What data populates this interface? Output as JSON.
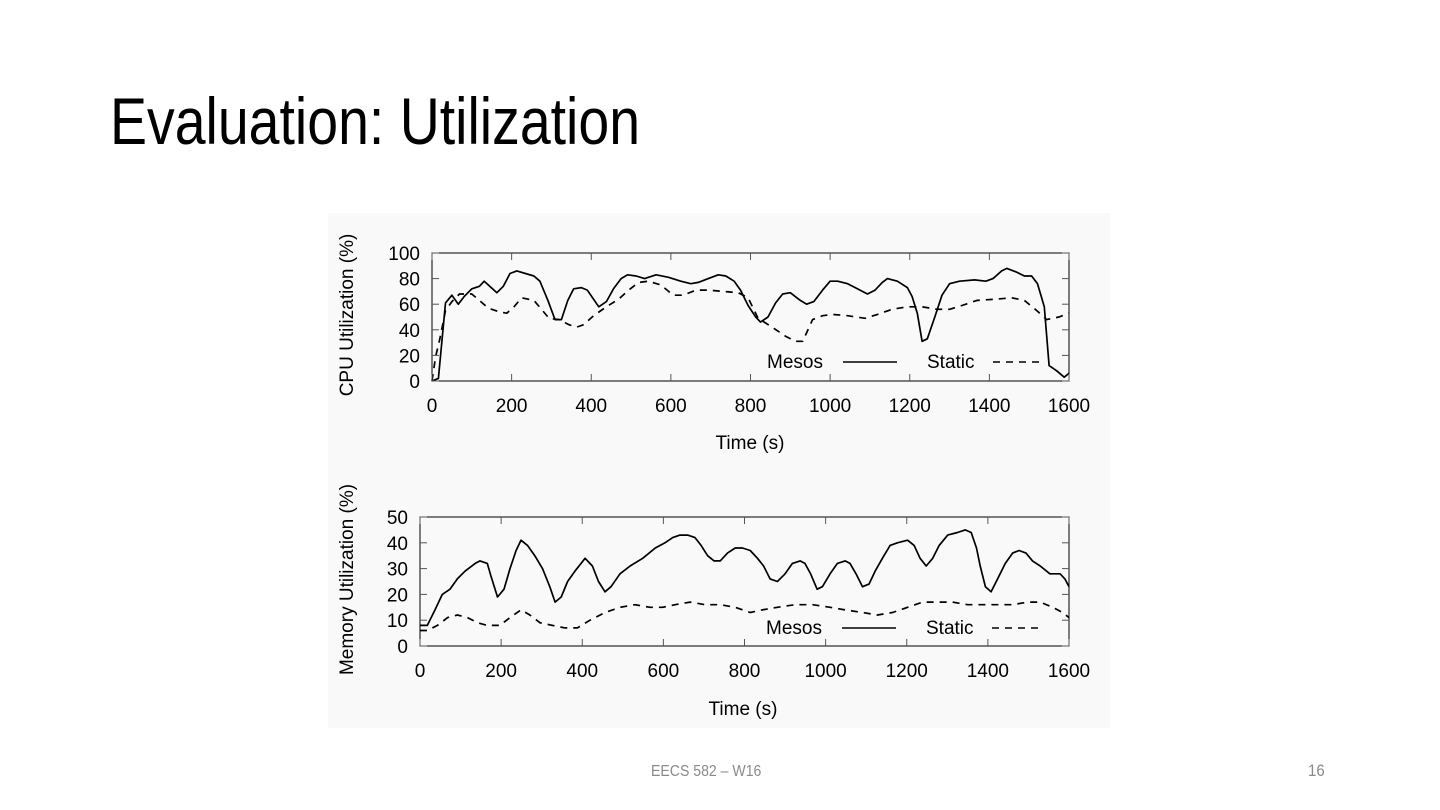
{
  "slide": {
    "title": "Evaluation: Utilization",
    "footer_left": "EECS 582 – W16",
    "page_number": "16"
  },
  "chart_data": [
    {
      "type": "line",
      "title": "",
      "xlabel": "Time (s)",
      "ylabel": "CPU Utilization (%)",
      "xlim": [
        0,
        1600
      ],
      "ylim": [
        0,
        100
      ],
      "xticks": [
        "0",
        "200",
        "400",
        "600",
        "800",
        "1000",
        "1200",
        "1400",
        "1600"
      ],
      "yticks": [
        "0",
        "20",
        "40",
        "60",
        "80",
        "100"
      ],
      "grid": false,
      "legend_position": "bottom-right",
      "series": [
        {
          "name": "Mesos",
          "style": "solid",
          "x": [
            0,
            16,
            34,
            50,
            66,
            81,
            100,
            119,
            131,
            163,
            179,
            196,
            213,
            256,
            271,
            291,
            309,
            325,
            341,
            356,
            375,
            390,
            419,
            438,
            456,
            475,
            491,
            513,
            534,
            563,
            594,
            625,
            650,
            669,
            694,
            719,
            738,
            759,
            775,
            794,
            813,
            825,
            844,
            863,
            881,
            900,
            925,
            941,
            959,
            981,
            1000,
            1019,
            1044,
            1063,
            1081,
            1094,
            1113,
            1131,
            1144,
            1169,
            1194,
            1206,
            1219,
            1231,
            1244,
            1263,
            1281,
            1300,
            1325,
            1363,
            1391,
            1409,
            1431,
            1444,
            1469,
            1488,
            1506,
            1521,
            1538,
            1550,
            1569,
            1588,
            1600
          ],
          "y": [
            0,
            2,
            61,
            67,
            60,
            66,
            72,
            74,
            78,
            69,
            74,
            84,
            86,
            82,
            78,
            63,
            48,
            48,
            63,
            72,
            73,
            71,
            58,
            62,
            72,
            80,
            83,
            82,
            80,
            83,
            81,
            78,
            76,
            77,
            80,
            83,
            82,
            78,
            71,
            59,
            50,
            46,
            50,
            61,
            68,
            69,
            63,
            60,
            62,
            71,
            78,
            78,
            76,
            73,
            70,
            68,
            71,
            77,
            80,
            78,
            73,
            66,
            53,
            31,
            33,
            50,
            67,
            76,
            78,
            79,
            78,
            80,
            86,
            88,
            85,
            82,
            82,
            76,
            58,
            12,
            8,
            3,
            6
          ]
        },
        {
          "name": "Static",
          "style": "dashed",
          "x": [
            0,
            9,
            19,
            34,
            50,
            69,
            100,
            119,
            141,
            169,
            188,
            206,
            225,
            256,
            275,
            294,
            319,
            344,
            363,
            381,
            406,
            438,
            469,
            494,
            519,
            544,
            575,
            606,
            631,
            663,
            694,
            731,
            769,
            794,
            819,
            850,
            888,
            913,
            931,
            956,
            981,
            1006,
            1044,
            1088,
            1119,
            1156,
            1194,
            1231,
            1269,
            1300,
            1331,
            1369,
            1419,
            1456,
            1488,
            1519,
            1544,
            1575,
            1600
          ],
          "y": [
            0,
            19,
            32,
            55,
            62,
            68,
            68,
            63,
            57,
            54,
            53,
            58,
            65,
            63,
            56,
            49,
            48,
            44,
            42,
            44,
            51,
            58,
            64,
            71,
            77,
            78,
            75,
            67,
            67,
            71,
            71,
            70,
            69,
            65,
            49,
            43,
            35,
            31,
            31,
            48,
            51,
            52,
            51,
            49,
            52,
            56,
            58,
            58,
            56,
            56,
            59,
            63,
            64,
            65,
            63,
            55,
            48,
            50,
            53
          ]
        }
      ],
      "legend": [
        "Mesos",
        "Static"
      ]
    },
    {
      "type": "line",
      "title": "",
      "xlabel": "Time (s)",
      "ylabel": "Memory Utilization (%)",
      "xlim": [
        0,
        1600
      ],
      "ylim": [
        0,
        50
      ],
      "xticks": [
        "0",
        "200",
        "400",
        "600",
        "800",
        "1000",
        "1200",
        "1400",
        "1600"
      ],
      "yticks": [
        "0",
        "10",
        "20",
        "30",
        "40",
        "50"
      ],
      "grid": false,
      "legend_position": "bottom-right",
      "series": [
        {
          "name": "Mesos",
          "style": "solid",
          "x": [
            0,
            18,
            37,
            55,
            74,
            92,
            111,
            136,
            148,
            166,
            175,
            191,
            207,
            222,
            237,
            249,
            265,
            283,
            302,
            320,
            333,
            348,
            364,
            382,
            407,
            425,
            440,
            456,
            471,
            493,
            518,
            549,
            580,
            604,
            623,
            641,
            660,
            678,
            693,
            709,
            725,
            740,
            758,
            777,
            795,
            814,
            832,
            847,
            863,
            881,
            900,
            918,
            937,
            949,
            963,
            979,
            992,
            1011,
            1029,
            1048,
            1060,
            1075,
            1091,
            1107,
            1122,
            1140,
            1159,
            1177,
            1202,
            1218,
            1233,
            1248,
            1264,
            1280,
            1301,
            1325,
            1344,
            1359,
            1372,
            1381,
            1394,
            1408,
            1424,
            1443,
            1461,
            1477,
            1494,
            1510,
            1529,
            1553,
            1578,
            1590,
            1600
          ],
          "y": [
            8,
            8,
            14,
            20,
            22,
            26,
            29,
            32,
            33,
            32,
            27,
            19,
            22,
            30,
            37,
            41,
            39,
            35,
            30,
            23,
            17,
            19,
            25,
            29,
            34,
            31,
            25,
            21,
            23,
            28,
            31,
            34,
            38,
            40,
            42,
            43,
            43,
            42,
            39,
            35,
            33,
            33,
            36,
            38,
            38,
            37,
            34,
            31,
            26,
            25,
            28,
            32,
            33,
            32,
            28,
            22,
            23,
            28,
            32,
            33,
            32,
            28,
            23,
            24,
            29,
            34,
            39,
            40,
            41,
            39,
            34,
            31,
            34,
            39,
            43,
            44,
            45,
            44,
            38,
            31,
            23,
            21,
            26,
            32,
            36,
            37,
            36,
            33,
            31,
            28,
            28,
            26,
            23
          ]
        },
        {
          "name": "Static",
          "style": "dashed",
          "x": [
            0,
            18,
            43,
            68,
            92,
            117,
            142,
            166,
            197,
            222,
            249,
            271,
            296,
            327,
            357,
            388,
            419,
            456,
            493,
            530,
            567,
            598,
            629,
            666,
            703,
            740,
            777,
            814,
            844,
            881,
            925,
            968,
            1011,
            1048,
            1091,
            1128,
            1165,
            1202,
            1239,
            1276,
            1313,
            1350,
            1387,
            1424,
            1461,
            1498,
            1529,
            1560,
            1584,
            1600
          ],
          "y": [
            6,
            6,
            8,
            11,
            12,
            11,
            9,
            8,
            8,
            11,
            14,
            12,
            9,
            8,
            7,
            7,
            10,
            13,
            15,
            16,
            15,
            15,
            16,
            17,
            16,
            16,
            15,
            13,
            14,
            15,
            16,
            16,
            15,
            14,
            13,
            12,
            13,
            15,
            17,
            17,
            17,
            16,
            16,
            16,
            16,
            17,
            17,
            15,
            13,
            11
          ]
        }
      ],
      "legend": [
        "Mesos",
        "Static"
      ]
    }
  ]
}
